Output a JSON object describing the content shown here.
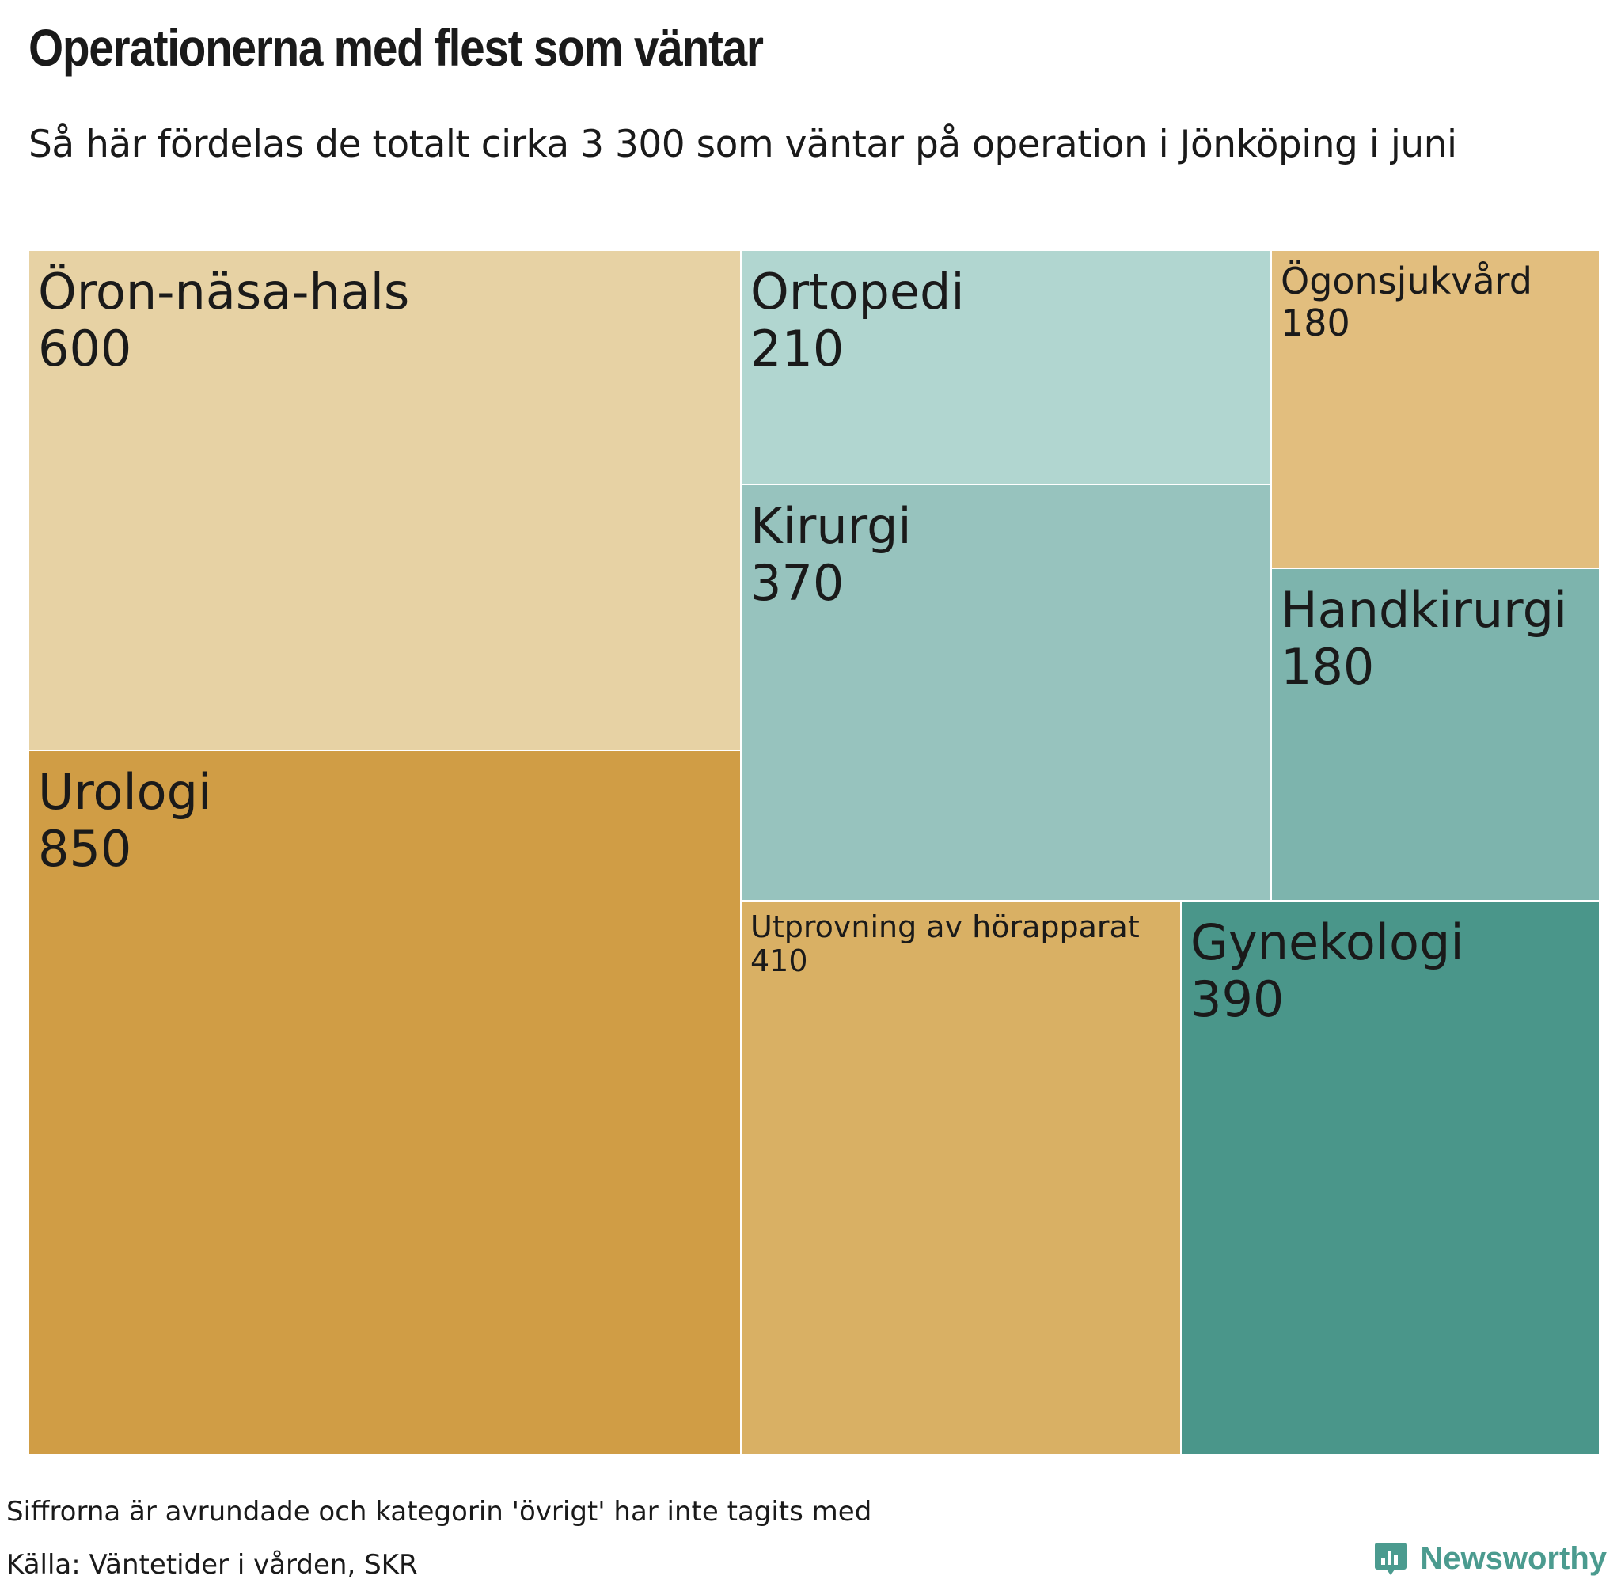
{
  "title": "Operationerna med flest som väntar",
  "subtitle": "Så här fördelas de totalt cirka 3 300 som väntar på operation i Jönköping i juni",
  "note": "Siffrorna är avrundade och kategorin 'övrigt' har inte tagits med",
  "source": "Källa: Väntetider i vården, SKR",
  "brand": {
    "name": "Newsworthy",
    "color": "#4b9b8f",
    "icon": "newsworthy-logo-icon"
  },
  "chart_data": {
    "type": "treemap",
    "unit": "antal väntande",
    "items": [
      {
        "label": "Öron-näsa-hals",
        "value": 600,
        "color": "#e7d2a4"
      },
      {
        "label": "Urologi",
        "value": 850,
        "color": "#d09d45"
      },
      {
        "label": "Ortopedi",
        "value": 210,
        "color": "#b1d6d0"
      },
      {
        "label": "Kirurgi",
        "value": 370,
        "color": "#97c3be"
      },
      {
        "label": "Ögonsjukvård",
        "value": 180,
        "color": "#e2be7e"
      },
      {
        "label": "Handkirurgi",
        "value": 180,
        "color": "#7db4ad"
      },
      {
        "label": "Utprovning av hörapparat",
        "value": 410,
        "color": "#d9b064"
      },
      {
        "label": "Gynekologi",
        "value": 390,
        "color": "#4a968a"
      }
    ]
  }
}
